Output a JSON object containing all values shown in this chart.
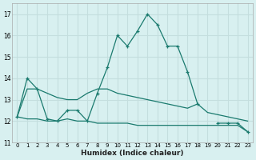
{
  "x": [
    0,
    1,
    2,
    3,
    4,
    5,
    6,
    7,
    8,
    9,
    10,
    11,
    12,
    13,
    14,
    15,
    16,
    17,
    18,
    19,
    20,
    21,
    22,
    23
  ],
  "line_main": [
    12.2,
    14.0,
    13.5,
    12.1,
    12.0,
    12.5,
    12.5,
    12.0,
    13.3,
    14.5,
    16.0,
    15.5,
    16.2,
    17.0,
    16.5,
    15.5,
    15.5,
    14.3,
    12.8,
    null,
    11.9,
    11.9,
    11.9,
    11.5
  ],
  "line_mid": [
    12.2,
    13.5,
    13.5,
    13.3,
    13.1,
    13.0,
    13.0,
    13.3,
    13.5,
    13.5,
    13.3,
    13.2,
    13.1,
    13.0,
    12.9,
    12.8,
    12.7,
    12.6,
    12.8,
    12.4,
    12.3,
    12.2,
    12.1,
    12.0
  ],
  "line_lower": [
    12.2,
    12.1,
    12.1,
    12.0,
    12.0,
    12.1,
    12.0,
    12.0,
    11.9,
    11.9,
    11.9,
    11.9,
    11.8,
    11.8,
    11.8,
    11.8,
    11.8,
    11.8,
    11.8,
    11.8,
    11.8,
    11.8,
    11.8,
    11.5
  ],
  "color": "#1a7a6e",
  "bg_color": "#d8f0f0",
  "grid_color": "#c4dede",
  "ylim": [
    11,
    17.5
  ],
  "yticks": [
    11,
    12,
    13,
    14,
    15,
    16,
    17
  ],
  "xlim": [
    -0.5,
    23.5
  ],
  "xlabel": "Humidex (Indice chaleur)"
}
